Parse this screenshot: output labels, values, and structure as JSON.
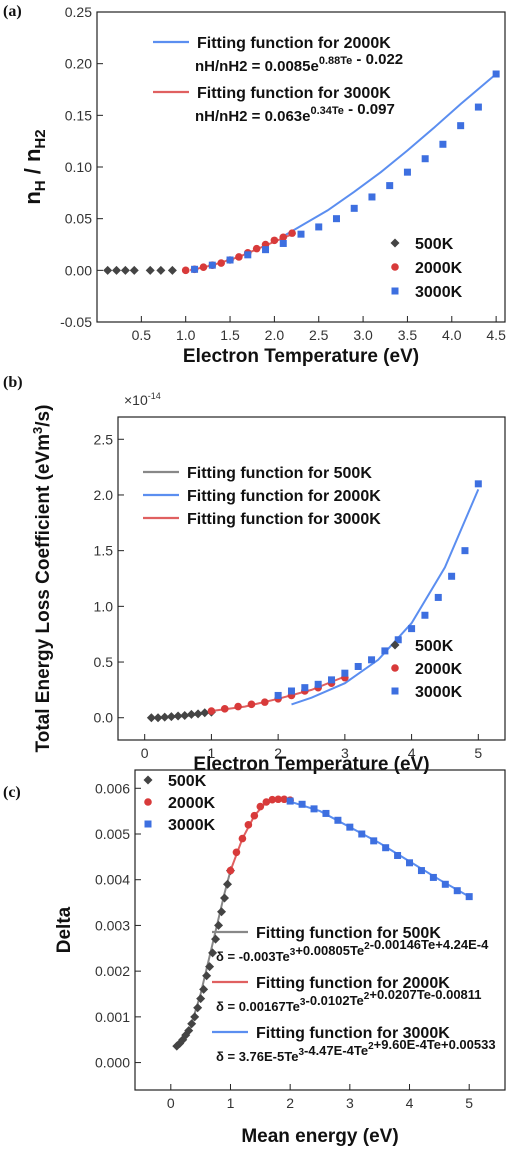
{
  "chart_data": [
    {
      "panel": "(a)",
      "type": "scatter",
      "xlabel": "Electron Temperature (eV)",
      "ylabel": "n_H / n_H2",
      "xlim": [
        0,
        4.6
      ],
      "ylim": [
        -0.05,
        0.25
      ],
      "x_ticks": [
        "0.5",
        "1.0",
        "1.5",
        "2.0",
        "2.5",
        "3.0",
        "3.5",
        "4.0",
        "4.5"
      ],
      "y_ticks": [
        "-0.05",
        "0.00",
        "0.05",
        "0.10",
        "0.15",
        "0.20",
        "0.25"
      ],
      "legend_placement": "bottom-right",
      "fit_legend_placement": "top-left",
      "fits": [
        {
          "name": "Fitting function for 2000K",
          "equation": "nH/nH2 = 0.0085e^(0.88Te) - 0.022",
          "color": "#5b8ef0",
          "x": [
            2.1,
            2.3,
            2.6,
            2.9,
            3.2,
            3.5,
            3.8,
            4.1,
            4.5
          ],
          "y": [
            0.033,
            0.043,
            0.058,
            0.076,
            0.095,
            0.116,
            0.138,
            0.161,
            0.19
          ]
        },
        {
          "name": "Fitting function for 3000K",
          "equation": "nH/nH2 = 0.063e^(0.34Te) - 0.097",
          "color": "#e06060",
          "x": [
            1.05,
            1.3,
            1.6,
            1.9,
            2.2
          ],
          "y": [
            0.0,
            0.005,
            0.013,
            0.024,
            0.035
          ]
        }
      ],
      "series": [
        {
          "name": "500K",
          "marker": "diamond",
          "color": "#444444",
          "x": [
            0.12,
            0.22,
            0.32,
            0.42,
            0.6,
            0.72,
            0.85
          ],
          "y": [
            0,
            0,
            0,
            0,
            0,
            0,
            0
          ]
        },
        {
          "name": "2000K",
          "marker": "circle",
          "color": "#d83a3a",
          "x": [
            1.0,
            1.1,
            1.2,
            1.3,
            1.4,
            1.5,
            1.6,
            1.7,
            1.8,
            1.9,
            2.0,
            2.1,
            2.2
          ],
          "y": [
            0.0,
            0.001,
            0.003,
            0.005,
            0.007,
            0.01,
            0.013,
            0.017,
            0.021,
            0.025,
            0.029,
            0.032,
            0.036
          ]
        },
        {
          "name": "3000K",
          "marker": "square",
          "color": "#3d6fe0",
          "x": [
            1.1,
            1.3,
            1.5,
            1.7,
            1.9,
            2.1,
            2.3,
            2.5,
            2.7,
            2.9,
            3.1,
            3.3,
            3.5,
            3.7,
            3.9,
            4.1,
            4.3,
            4.5
          ],
          "y": [
            0.001,
            0.005,
            0.01,
            0.015,
            0.02,
            0.026,
            0.035,
            0.042,
            0.05,
            0.06,
            0.071,
            0.082,
            0.095,
            0.108,
            0.122,
            0.14,
            0.158,
            0.19
          ]
        }
      ]
    },
    {
      "panel": "(b)",
      "type": "scatter",
      "xlabel": "Electron Temperature (eV)",
      "ylabel": "Total Energy Loss Coefficient (eVm3/s)",
      "y_multiplier": "×10-14",
      "xlim": [
        -0.4,
        5.4
      ],
      "ylim": [
        -0.2,
        2.7
      ],
      "x_ticks": [
        "0",
        "1",
        "2",
        "3",
        "4",
        "5"
      ],
      "y_ticks": [
        "0.0",
        "0.5",
        "1.0",
        "1.5",
        "2.0",
        "2.5"
      ],
      "legend_placement": "bottom-right",
      "fit_legend_placement": "top-left",
      "fits": [
        {
          "name": "Fitting function for 500K",
          "color": "#888888",
          "x": [
            0.1,
            0.3,
            0.5,
            0.7,
            0.9,
            1.0
          ],
          "y": [
            0.0,
            0.0,
            0.01,
            0.02,
            0.04,
            0.05
          ]
        },
        {
          "name": "Fitting function for 2000K",
          "color": "#5b8ef0",
          "x": [
            2.2,
            2.5,
            3.0,
            3.5,
            4.0,
            4.5,
            5.0
          ],
          "y": [
            0.12,
            0.18,
            0.31,
            0.52,
            0.85,
            1.35,
            2.05
          ]
        },
        {
          "name": "Fitting function for 3000K",
          "color": "#e06060",
          "x": [
            1.0,
            1.5,
            2.0,
            2.5,
            3.0
          ],
          "y": [
            0.06,
            0.1,
            0.17,
            0.25,
            0.37
          ]
        }
      ],
      "series": [
        {
          "name": "500K",
          "marker": "diamond",
          "color": "#444444",
          "x": [
            0.1,
            0.2,
            0.3,
            0.4,
            0.5,
            0.6,
            0.7,
            0.8,
            0.9,
            1.0
          ],
          "y": [
            0.0,
            0.0,
            0.005,
            0.01,
            0.015,
            0.02,
            0.03,
            0.035,
            0.045,
            0.05
          ]
        },
        {
          "name": "2000K",
          "marker": "circle",
          "color": "#d83a3a",
          "x": [
            1.0,
            1.2,
            1.4,
            1.6,
            1.8,
            2.0,
            2.2,
            2.4,
            2.6,
            2.8,
            3.0
          ],
          "y": [
            0.06,
            0.08,
            0.1,
            0.12,
            0.14,
            0.17,
            0.2,
            0.24,
            0.27,
            0.31,
            0.36
          ]
        },
        {
          "name": "3000K",
          "marker": "square",
          "color": "#3d6fe0",
          "x": [
            2.0,
            2.2,
            2.4,
            2.6,
            2.8,
            3.0,
            3.2,
            3.4,
            3.6,
            3.8,
            4.0,
            4.2,
            4.4,
            4.6,
            4.8,
            5.0
          ],
          "y": [
            0.2,
            0.24,
            0.27,
            0.3,
            0.34,
            0.4,
            0.46,
            0.52,
            0.6,
            0.7,
            0.8,
            0.92,
            1.08,
            1.27,
            1.5,
            2.1
          ]
        }
      ]
    },
    {
      "panel": "(c)",
      "type": "scatter",
      "xlabel": "Mean energy (eV)",
      "ylabel": "Delta",
      "xlim": [
        -0.6,
        5.6
      ],
      "ylim": [
        -0.0006,
        0.0064
      ],
      "x_ticks": [
        "0",
        "1",
        "2",
        "3",
        "4",
        "5"
      ],
      "y_ticks": [
        "0.000",
        "0.001",
        "0.002",
        "0.003",
        "0.004",
        "0.005",
        "0.006"
      ],
      "legend_placement": "top-left",
      "fit_legend_placement": "bottom-right",
      "fits": [
        {
          "name": "Fitting function for 500K",
          "equation": "δ = -0.003Te3+0.00805Te2-0.00146Te+4.24E-4",
          "color": "#888888",
          "x": [
            0.1,
            0.3,
            0.5,
            0.7,
            0.9,
            1.0
          ],
          "y": [
            0.00036,
            0.00064,
            0.0015,
            0.0026,
            0.0037,
            0.0042
          ]
        },
        {
          "name": "Fitting function for 2000K",
          "equation": "δ = 0.00167Te3-0.0102Te2+0.0207Te-0.00811",
          "color": "#e06060",
          "x": [
            1.0,
            1.2,
            1.4,
            1.6,
            1.8,
            2.0
          ],
          "y": [
            0.0042,
            0.0049,
            0.0054,
            0.0057,
            0.00575,
            0.00575
          ]
        },
        {
          "name": "Fitting function for 3000K",
          "equation": "δ = 3.76E-5Te3-4.47E-4Te2+9.60E-4Te+0.00533",
          "color": "#5b8ef0",
          "x": [
            1.9,
            2.5,
            3.0,
            3.5,
            4.0,
            4.5,
            5.0
          ],
          "y": [
            0.00575,
            0.0055,
            0.00515,
            0.0048,
            0.0044,
            0.004,
            0.00363
          ]
        }
      ],
      "series": [
        {
          "name": "500K",
          "marker": "diamond",
          "color": "#444444",
          "x": [
            0.1,
            0.15,
            0.2,
            0.25,
            0.3,
            0.35,
            0.4,
            0.45,
            0.5,
            0.55,
            0.6,
            0.65,
            0.7,
            0.75,
            0.8,
            0.85,
            0.9,
            0.95,
            1.0
          ],
          "y": [
            0.00036,
            0.00042,
            0.0005,
            0.0006,
            0.0007,
            0.00085,
            0.001,
            0.0012,
            0.0014,
            0.0016,
            0.0019,
            0.0021,
            0.0024,
            0.0027,
            0.003,
            0.0033,
            0.0036,
            0.0039,
            0.0042
          ]
        },
        {
          "name": "2000K",
          "marker": "circle",
          "color": "#d83a3a",
          "x": [
            1.0,
            1.1,
            1.2,
            1.3,
            1.4,
            1.5,
            1.6,
            1.7,
            1.8,
            1.9,
            2.0
          ],
          "y": [
            0.0042,
            0.0046,
            0.0049,
            0.0052,
            0.0054,
            0.0056,
            0.0057,
            0.00575,
            0.00576,
            0.00576,
            0.00574
          ]
        },
        {
          "name": "3000K",
          "marker": "square",
          "color": "#3d6fe0",
          "x": [
            2.0,
            2.2,
            2.4,
            2.6,
            2.8,
            3.0,
            3.2,
            3.4,
            3.6,
            3.8,
            4.0,
            4.2,
            4.4,
            4.6,
            4.8,
            5.0
          ],
          "y": [
            0.00572,
            0.00565,
            0.00555,
            0.00545,
            0.0053,
            0.00515,
            0.005,
            0.00485,
            0.0047,
            0.00453,
            0.00437,
            0.0042,
            0.00405,
            0.0039,
            0.00376,
            0.00363
          ]
        }
      ]
    }
  ]
}
